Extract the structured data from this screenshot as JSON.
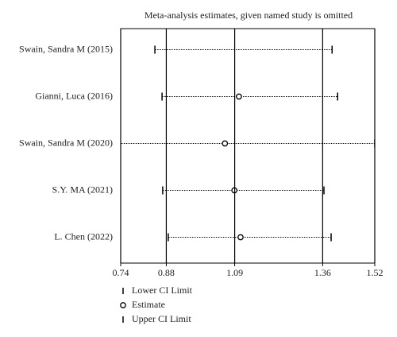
{
  "chart_data": {
    "type": "sensitivity",
    "title": "Meta-analysis estimates, given named study is omitted",
    "categories": [
      "Swain, Sandra M (2015)",
      "Gianni, Luca (2016)",
      "Swain, Sandra M (2020)",
      "S.Y. MA (2021)",
      "L. Chen (2022)"
    ],
    "series": [
      {
        "name": "Lower CI Limit",
        "values": [
          0.845,
          0.867,
          0.72,
          0.869,
          0.886
        ]
      },
      {
        "name": "Estimate",
        "values": [
          null,
          1.103,
          1.06,
          1.089,
          1.108
        ]
      },
      {
        "name": "Upper CI Limit",
        "values": [
          1.389,
          1.406,
          1.52,
          1.364,
          1.386
        ]
      }
    ],
    "xlim": [
      0.74,
      1.52
    ],
    "xticks": [
      0.74,
      0.88,
      1.09,
      1.36,
      1.52
    ],
    "grid": true,
    "color": "#000000"
  }
}
